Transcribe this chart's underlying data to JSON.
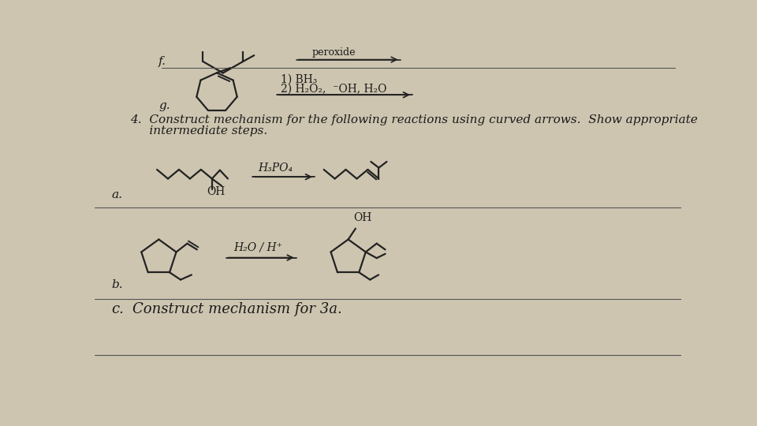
{
  "bg_color": "#cdc5b0",
  "text_color": "#1a1a1a",
  "line_color": "#222222",
  "separator_color": "#555555",
  "label_f": "f.",
  "label_g": "g.",
  "reagent_peroxide": "peroxide",
  "reagent_g1": "1) BH₃",
  "reagent_g2": "2) H₂O₂,  ⁻OH, H₂O",
  "title_4": "4.  Construct mechanism for the following reactions using curved arrows.  Show appropriate",
  "title_4b": "     intermediate steps.",
  "label_a": "a.",
  "label_b": "b.",
  "label_c": "c.",
  "reagent_a": "H₃PO₄",
  "reagent_b": "H₂O / H⁺",
  "section_c_text": "Construct mechanism for 3a."
}
